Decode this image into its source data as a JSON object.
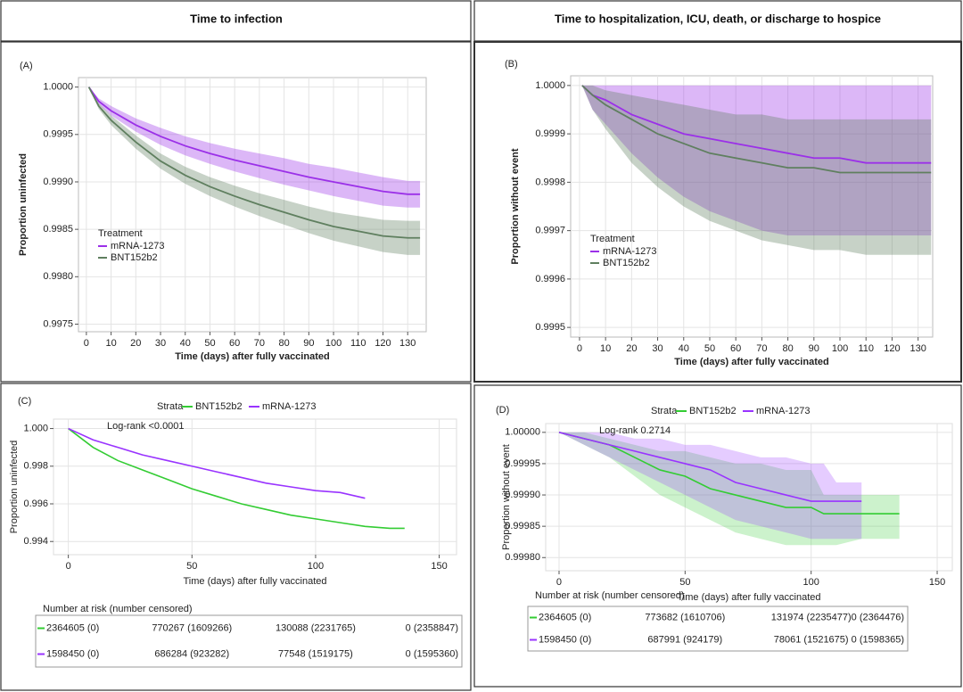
{
  "headers": [
    "Time to infection",
    "Time to hospitalization, ICU, death, or discharge to hospice"
  ],
  "chart_data": [
    {
      "type": "line",
      "panel_label": "(A)",
      "ylabel": "Proportion uninfected",
      "xlabel": "Time (days) after fully vaccinated",
      "legend_title": "Treatment",
      "legend": "lower left",
      "grid": true,
      "x": [
        1,
        5,
        10,
        20,
        30,
        40,
        50,
        60,
        70,
        80,
        90,
        100,
        110,
        120,
        130,
        135
      ],
      "series": [
        {
          "name": "mRNA-1273",
          "color": "#9b30e8",
          "values": [
            1.0,
            0.99985,
            0.99975,
            0.9996,
            0.99948,
            0.99938,
            0.9993,
            0.99923,
            0.99917,
            0.99911,
            0.99905,
            0.999,
            0.99895,
            0.9989,
            0.99887,
            0.99887
          ],
          "lower": [
            1.0,
            0.99982,
            0.9997,
            0.99953,
            0.99939,
            0.99928,
            0.99919,
            0.99911,
            0.99904,
            0.99897,
            0.99891,
            0.99885,
            0.9988,
            0.99875,
            0.99873,
            0.99873
          ],
          "upper": [
            1.0,
            0.99988,
            0.9998,
            0.99967,
            0.99957,
            0.99948,
            0.99941,
            0.99935,
            0.9993,
            0.99925,
            0.99919,
            0.99915,
            0.9991,
            0.99905,
            0.99901,
            0.99901
          ]
        },
        {
          "name": "BNT152b2",
          "color": "#5f7f5f",
          "values": [
            1.0,
            0.9998,
            0.99965,
            0.99942,
            0.99922,
            0.99907,
            0.99895,
            0.99885,
            0.99876,
            0.99868,
            0.9986,
            0.99853,
            0.99848,
            0.99843,
            0.99841,
            0.99841
          ],
          "lower": [
            1.0,
            0.99977,
            0.9996,
            0.99935,
            0.99914,
            0.99898,
            0.99885,
            0.99874,
            0.99864,
            0.99855,
            0.99846,
            0.99838,
            0.99832,
            0.99826,
            0.99823,
            0.99823
          ],
          "upper": [
            1.0,
            0.99983,
            0.9997,
            0.99949,
            0.9993,
            0.99916,
            0.99905,
            0.99896,
            0.99888,
            0.99881,
            0.99874,
            0.99868,
            0.99864,
            0.9986,
            0.99859,
            0.99859
          ]
        }
      ],
      "xlim": [
        -3.2,
        137.5
      ],
      "xticks": [
        0,
        10,
        20,
        30,
        40,
        50,
        60,
        70,
        80,
        90,
        100,
        110,
        120,
        130
      ],
      "ylim": [
        0.99742,
        1.0001
      ],
      "yticks": [
        {
          "value": 0.9975,
          "label": "0.9975"
        },
        {
          "value": 0.998,
          "label": "0.9980"
        },
        {
          "value": 0.9985,
          "label": "0.9985"
        },
        {
          "value": 0.999,
          "label": "0.9990"
        },
        {
          "value": 0.9995,
          "label": "0.9995"
        },
        {
          "value": 1.0,
          "label": "1.0000"
        }
      ]
    },
    {
      "type": "line",
      "panel_label": "(B)",
      "ylabel": "Proportion without event",
      "xlabel": "Time (days) after fully vaccinated",
      "legend_title": "Treatment",
      "legend": "lower left",
      "grid": true,
      "x": [
        1,
        5,
        10,
        20,
        30,
        40,
        50,
        60,
        70,
        80,
        90,
        100,
        110,
        120,
        130,
        135
      ],
      "series": [
        {
          "name": "mRNA-1273",
          "color": "#9b30e8",
          "values": [
            1.0,
            0.99998,
            0.99997,
            0.99994,
            0.99992,
            0.9999,
            0.99989,
            0.99988,
            0.99987,
            0.99986,
            0.99985,
            0.99985,
            0.99984,
            0.99984,
            0.99984,
            0.99984
          ],
          "lower": [
            1.0,
            0.99995,
            0.99992,
            0.99986,
            0.99981,
            0.99977,
            0.99974,
            0.99972,
            0.9997,
            0.99969,
            0.99969,
            0.99969,
            0.99969,
            0.99969,
            0.99969,
            0.99969
          ],
          "upper": [
            1.0,
            1.0,
            1.0,
            1.0,
            1.0,
            1.0,
            1.0,
            1.0,
            1.0,
            1.0,
            1.0,
            1.0,
            1.0,
            1.0,
            1.0,
            1.0
          ]
        },
        {
          "name": "BNT152b2",
          "color": "#5f7f5f",
          "values": [
            1.0,
            0.99998,
            0.99996,
            0.99993,
            0.9999,
            0.99988,
            0.99986,
            0.99985,
            0.99984,
            0.99983,
            0.99983,
            0.99982,
            0.99982,
            0.99982,
            0.99982,
            0.99982
          ],
          "lower": [
            1.0,
            0.99995,
            0.99991,
            0.99984,
            0.99979,
            0.99975,
            0.99972,
            0.9997,
            0.99968,
            0.99967,
            0.99966,
            0.99966,
            0.99965,
            0.99965,
            0.99965,
            0.99965
          ],
          "upper": [
            1.0,
            1.0,
            0.99999,
            0.99998,
            0.99997,
            0.99996,
            0.99995,
            0.99994,
            0.99994,
            0.99993,
            0.99993,
            0.99993,
            0.99993,
            0.99993,
            0.99993,
            0.99993
          ]
        }
      ],
      "xlim": [
        -3.4,
        135.6
      ],
      "xticks": [
        0,
        10,
        20,
        30,
        40,
        50,
        60,
        70,
        80,
        90,
        100,
        110,
        120,
        130
      ],
      "ylim": [
        0.99948,
        1.00002
      ],
      "yticks": [
        {
          "value": 0.9995,
          "label": "0.9995"
        },
        0.9996,
        0.9997,
        0.9998,
        0.9999,
        {
          "value": 1.0,
          "label": "1.0000"
        }
      ]
    },
    {
      "type": "line",
      "panel_label": "(C)",
      "ylabel": "Proportion uninfected",
      "xlabel": "Time (days) after fully vaccinated",
      "legend_title": "Strata",
      "legend": "top",
      "annotation": "Log-rank <0.0001",
      "grid": true,
      "x": [
        0,
        10,
        20,
        30,
        40,
        50,
        60,
        70,
        80,
        90,
        100,
        110,
        120,
        130,
        136
      ],
      "series": [
        {
          "name": "BNT152b2",
          "color": "#33cc33",
          "values": [
            1.0,
            0.999,
            0.9983,
            0.9978,
            0.9973,
            0.9968,
            0.9964,
            0.996,
            0.9957,
            0.9954,
            0.9952,
            0.995,
            0.9948,
            0.9947,
            0.9947
          ]
        },
        {
          "name": "mRNA-1273",
          "color": "#9933ff",
          "values": [
            1.0,
            0.9994,
            0.999,
            0.9986,
            0.9983,
            0.998,
            0.9977,
            0.9974,
            0.9971,
            0.9969,
            0.9967,
            0.9966,
            0.9963,
            null,
            null
          ]
        }
      ],
      "xlim": [
        -6,
        157
      ],
      "xticks": [
        0,
        50,
        100,
        150
      ],
      "ylim": [
        0.9933,
        1.0005
      ],
      "yticks": [
        0.994,
        0.996,
        0.998,
        {
          "value": 1.0,
          "label": "1.000"
        }
      ],
      "risk_table": {
        "title": "Number at risk (number censored)",
        "rows": [
          [
            "2364605 (0)",
            "770267 (1609266)",
            "130088 (2231765)",
            "0 (2358847)"
          ],
          [
            "1598450 (0)",
            "686284 (923282)",
            "77548 (1519175)",
            "0 (1595360)"
          ]
        ]
      }
    },
    {
      "type": "line",
      "panel_label": "(D)",
      "ylabel": "Proportion without event",
      "xlabel": "Time (days) after fully vaccinated",
      "legend_title": "Strata",
      "legend": "top",
      "annotation": "Log-rank 0.2714",
      "grid": true,
      "x": [
        0,
        10,
        20,
        30,
        40,
        50,
        60,
        70,
        80,
        90,
        100,
        105,
        110,
        120,
        135
      ],
      "series": [
        {
          "name": "BNT152b2",
          "color": "#33cc33",
          "values": [
            1.0,
            0.99999,
            0.99998,
            0.99996,
            0.99994,
            0.99993,
            0.99991,
            0.9999,
            0.99989,
            0.99988,
            0.99988,
            0.99987,
            0.99987,
            0.99987,
            0.99987
          ],
          "lower": [
            1.0,
            0.99998,
            0.99996,
            0.99993,
            0.9999,
            0.99988,
            0.99986,
            0.99984,
            0.99983,
            0.99982,
            0.99982,
            0.99982,
            0.99982,
            0.99983,
            0.99983
          ],
          "upper": [
            1.0,
            1.0,
            0.99999,
            0.99998,
            0.99997,
            0.99997,
            0.99996,
            0.99995,
            0.99995,
            0.99994,
            0.99994,
            0.9999,
            0.9999,
            0.9999,
            0.9999
          ]
        },
        {
          "name": "mRNA-1273",
          "color": "#9933ff",
          "values": [
            1.0,
            0.99999,
            0.99998,
            0.99997,
            0.99996,
            0.99995,
            0.99994,
            0.99992,
            0.99991,
            0.9999,
            0.99989,
            0.99989,
            0.99989,
            0.99989,
            null
          ],
          "lower": [
            1.0,
            0.99998,
            0.99996,
            0.99994,
            0.99992,
            0.9999,
            0.99988,
            0.99986,
            0.99985,
            0.99984,
            0.99983,
            0.99983,
            0.99983,
            0.99983,
            null
          ],
          "upper": [
            1.0,
            1.0,
            1.0,
            0.99999,
            0.99999,
            0.99998,
            0.99998,
            0.99997,
            0.99996,
            0.99996,
            0.99995,
            0.99995,
            0.99992,
            0.99992,
            null
          ]
        }
      ],
      "xlim": [
        -5.3,
        156
      ],
      "xticks": [
        0,
        50,
        100,
        150
      ],
      "ylim": [
        0.999779,
        1.000014
      ],
      "yticks": [
        {
          "value": 0.9998,
          "label": "0.99980"
        },
        0.99985,
        {
          "value": 0.9999,
          "label": "0.99990"
        },
        0.99995,
        {
          "value": 1.0,
          "label": "1.00000"
        }
      ],
      "risk_table": {
        "title": "Number at risk (number censored)",
        "rows": [
          [
            "2364605 (0)",
            "773682 (1610706)",
            "131974 (2235477)",
            "0 (2364476)"
          ],
          [
            "1598450 (0)",
            "687991 (924179)",
            "78061 (1521675)",
            "0 (1598365)"
          ]
        ]
      }
    }
  ]
}
